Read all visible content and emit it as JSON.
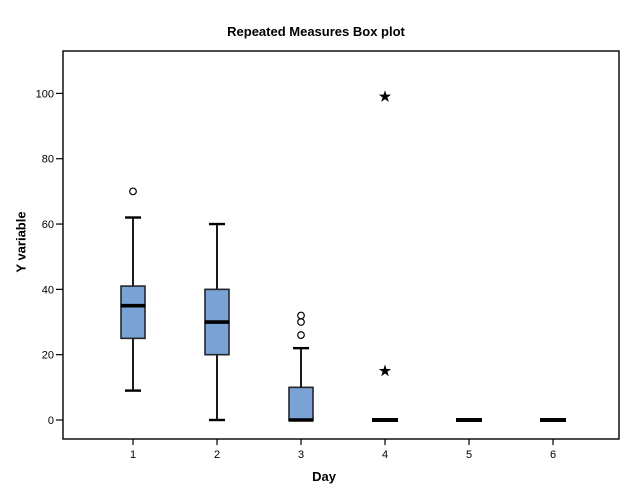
{
  "chart_data": {
    "type": "boxplot",
    "title": "Repeated Measures Box plot",
    "xlabel": "Day",
    "ylabel": "Y variable",
    "categories": [
      "1",
      "2",
      "3",
      "4",
      "5",
      "6"
    ],
    "y_ticks": [
      0,
      20,
      40,
      60,
      80,
      100
    ],
    "ylim": [
      -6,
      113
    ],
    "grid": false,
    "legend": "none",
    "box_fill": "#7ba2d4",
    "box_stroke": "#23272d",
    "line_color": "#000000",
    "boxes": [
      {
        "category": "1",
        "whisker_low": 9,
        "q1": 25,
        "median": 35,
        "q3": 41,
        "whisker_high": 62,
        "outliers": [
          70
        ],
        "extremes": []
      },
      {
        "category": "2",
        "whisker_low": 0,
        "q1": 20,
        "median": 30,
        "q3": 40,
        "whisker_high": 60,
        "outliers": [],
        "extremes": []
      },
      {
        "category": "3",
        "whisker_low": 0,
        "q1": 0,
        "median": 0,
        "q3": 10,
        "whisker_high": 22,
        "outliers": [
          26,
          30,
          32
        ],
        "extremes": []
      },
      {
        "category": "4",
        "whisker_low": 0,
        "q1": 0,
        "median": 0,
        "q3": 0,
        "whisker_high": 0,
        "outliers": [],
        "extremes": [
          15,
          99
        ]
      },
      {
        "category": "5",
        "whisker_low": 0,
        "q1": 0,
        "median": 0,
        "q3": 0,
        "whisker_high": 0,
        "outliers": [],
        "extremes": []
      },
      {
        "category": "6",
        "whisker_low": 0,
        "q1": 0,
        "median": 0,
        "q3": 0,
        "whisker_high": 0,
        "outliers": [],
        "extremes": []
      }
    ]
  }
}
